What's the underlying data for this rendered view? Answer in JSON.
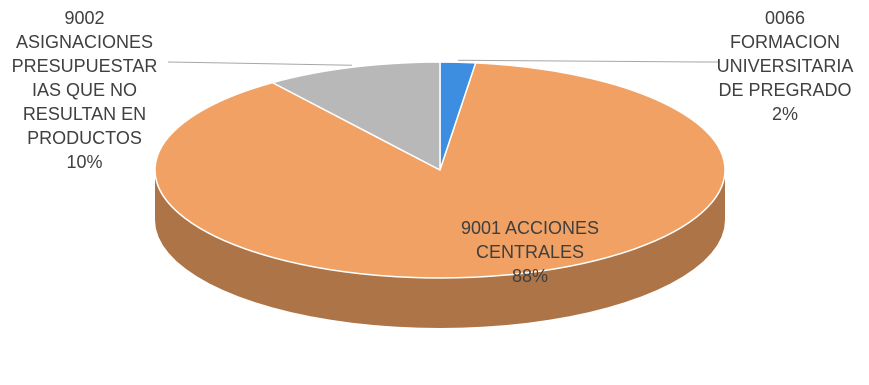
{
  "chart_data": {
    "type": "pie",
    "style": "3d",
    "slices": [
      {
        "code": "0066",
        "label_lines": [
          "FORMACION",
          "UNIVERSITARIA",
          "DE PREGRADO"
        ],
        "value": 2,
        "pct_label": "2%",
        "color": "#3d8ee0",
        "label_placement": "outside-right"
      },
      {
        "code": "9001",
        "label_lines": [
          "9001 ACCIONES",
          "CENTRALES"
        ],
        "value": 88,
        "pct_label": "88%",
        "color": "#f0a163",
        "label_placement": "inside"
      },
      {
        "code": "9002",
        "label_lines": [
          "ASIGNACIONES",
          "PRESUPUESTAR",
          "IAS QUE NO",
          "RESULTAN EN",
          "PRODUCTOS"
        ],
        "value": 10,
        "pct_label": "10%",
        "color": "#b8b8b8",
        "label_placement": "outside-left"
      }
    ],
    "legend": "none"
  }
}
